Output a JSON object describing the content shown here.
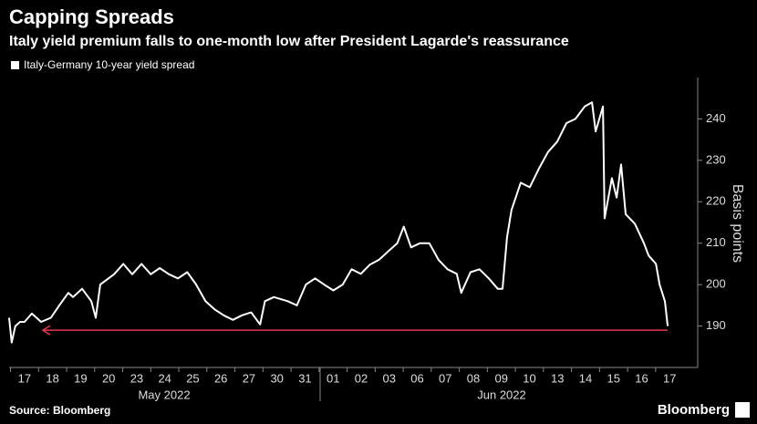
{
  "chart_data": {
    "type": "line",
    "title": "Capping Spreads",
    "subtitle": "Italy yield premium falls to one-month low after President Lagarde's reassurance",
    "y_label": "Basis points",
    "source": "Source: Bloomberg",
    "brand": "Bloomberg",
    "x_group_labels": [
      "May 2022",
      "Jun 2022"
    ],
    "xlim": [
      -0.55,
      24.0
    ],
    "ylim": [
      180,
      250
    ],
    "yticks": [
      190,
      200,
      210,
      220,
      230,
      240
    ],
    "xticks": [
      {
        "value": 0,
        "label": "17"
      },
      {
        "value": 1,
        "label": "18"
      },
      {
        "value": 2,
        "label": "19"
      },
      {
        "value": 3,
        "label": "20"
      },
      {
        "value": 4,
        "label": "23"
      },
      {
        "value": 5,
        "label": "24"
      },
      {
        "value": 6,
        "label": "25"
      },
      {
        "value": 7,
        "label": "26"
      },
      {
        "value": 8,
        "label": "27"
      },
      {
        "value": 9,
        "label": "30"
      },
      {
        "value": 10,
        "label": "31"
      },
      {
        "value": 11,
        "label": "01"
      },
      {
        "value": 12,
        "label": "02"
      },
      {
        "value": 13,
        "label": "03"
      },
      {
        "value": 14,
        "label": "06"
      },
      {
        "value": 15,
        "label": "07"
      },
      {
        "value": 16,
        "label": "08"
      },
      {
        "value": 17,
        "label": "09"
      },
      {
        "value": 18,
        "label": "10"
      },
      {
        "value": 19,
        "label": "13"
      },
      {
        "value": 20,
        "label": "14"
      },
      {
        "value": 21,
        "label": "15"
      },
      {
        "value": 22,
        "label": "16"
      },
      {
        "value": 23,
        "label": "17"
      }
    ],
    "x": [
      -0.55,
      -0.46,
      -0.33,
      -0.16,
      0,
      0.26,
      0.59,
      0.94,
      1.24,
      1.56,
      1.73,
      2.05,
      2.38,
      2.54,
      2.7,
      3.19,
      3.52,
      3.84,
      4.17,
      4.5,
      4.82,
      5.15,
      5.47,
      5.8,
      6.12,
      6.45,
      6.78,
      7.1,
      7.43,
      7.75,
      8.08,
      8.4,
      8.57,
      8.89,
      9.38,
      9.71,
      10.03,
      10.36,
      10.68,
      11.01,
      11.34,
      11.66,
      11.99,
      12.31,
      12.64,
      12.96,
      13.29,
      13.52,
      13.78,
      14.1,
      14.43,
      14.76,
      15.08,
      15.41,
      15.57,
      15.9,
      16.22,
      16.55,
      16.87,
      17.04,
      17.2,
      17.36,
      17.69,
      18.01,
      18.34,
      18.66,
      18.99,
      19.32,
      19.64,
      19.97,
      20.23,
      20.36,
      20.62,
      20.68,
      20.94,
      21.11,
      21.27,
      21.43,
      21.76,
      22.08,
      22.25,
      22.51,
      22.64,
      22.83,
      22.93
    ],
    "series": [
      {
        "name": "Italy-Germany 10-year yield spread",
        "color": "#ffffff",
        "values": [
          192,
          186,
          190,
          191,
          191,
          193,
          191,
          192,
          195,
          198,
          197,
          199,
          196,
          192,
          200,
          202.5,
          205,
          202.5,
          205,
          202.5,
          204,
          202.5,
          201.5,
          203,
          200,
          196,
          194,
          192.6,
          191.5,
          192.6,
          193.3,
          190.4,
          196,
          197,
          196,
          195,
          200,
          201.5,
          200,
          198.6,
          200,
          203.7,
          202.6,
          204.8,
          206,
          208,
          210,
          214,
          209,
          210,
          210,
          206,
          203.7,
          202.6,
          198,
          203,
          203.7,
          201.5,
          199,
          199,
          211.4,
          218,
          224.6,
          223.5,
          228,
          232,
          234.5,
          239,
          240,
          243,
          244,
          237,
          243,
          216,
          225.7,
          221,
          229,
          217,
          214.7,
          210,
          207,
          205,
          200,
          196,
          190
        ]
      }
    ],
    "reference_line": {
      "value": 189,
      "color": "#e8344e",
      "x": [
        0.65,
        22.93
      ]
    }
  }
}
